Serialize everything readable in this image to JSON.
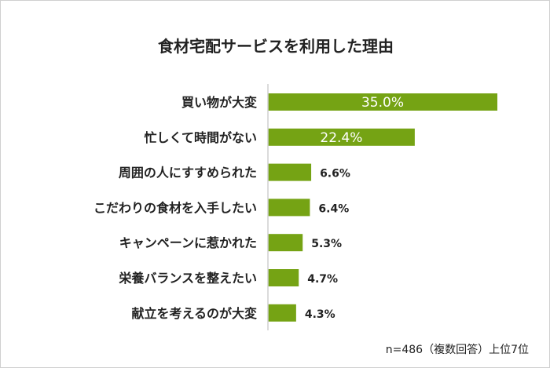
{
  "chart_data": {
    "type": "bar",
    "orientation": "horizontal",
    "title": "食材宅配サービスを利用した理由",
    "categories": [
      "買い物が大変",
      "忙しくて時間がない",
      "周囲の人にすすめられた",
      "こだわりの食材を入手したい",
      "キャンペーンに惹かれた",
      "栄養バランスを整えたい",
      "献立を考えるのが大変"
    ],
    "values": [
      35.0,
      22.4,
      6.6,
      6.4,
      5.3,
      4.7,
      4.3
    ],
    "value_labels": [
      "35.0%",
      "22.4%",
      "6.6%",
      "6.4%",
      "5.3%",
      "4.7%",
      "4.3%"
    ],
    "xlim": [
      0,
      35
    ],
    "grid": false,
    "bar_color": "#75a314",
    "note": "n=486（複数回答）上位7位"
  }
}
